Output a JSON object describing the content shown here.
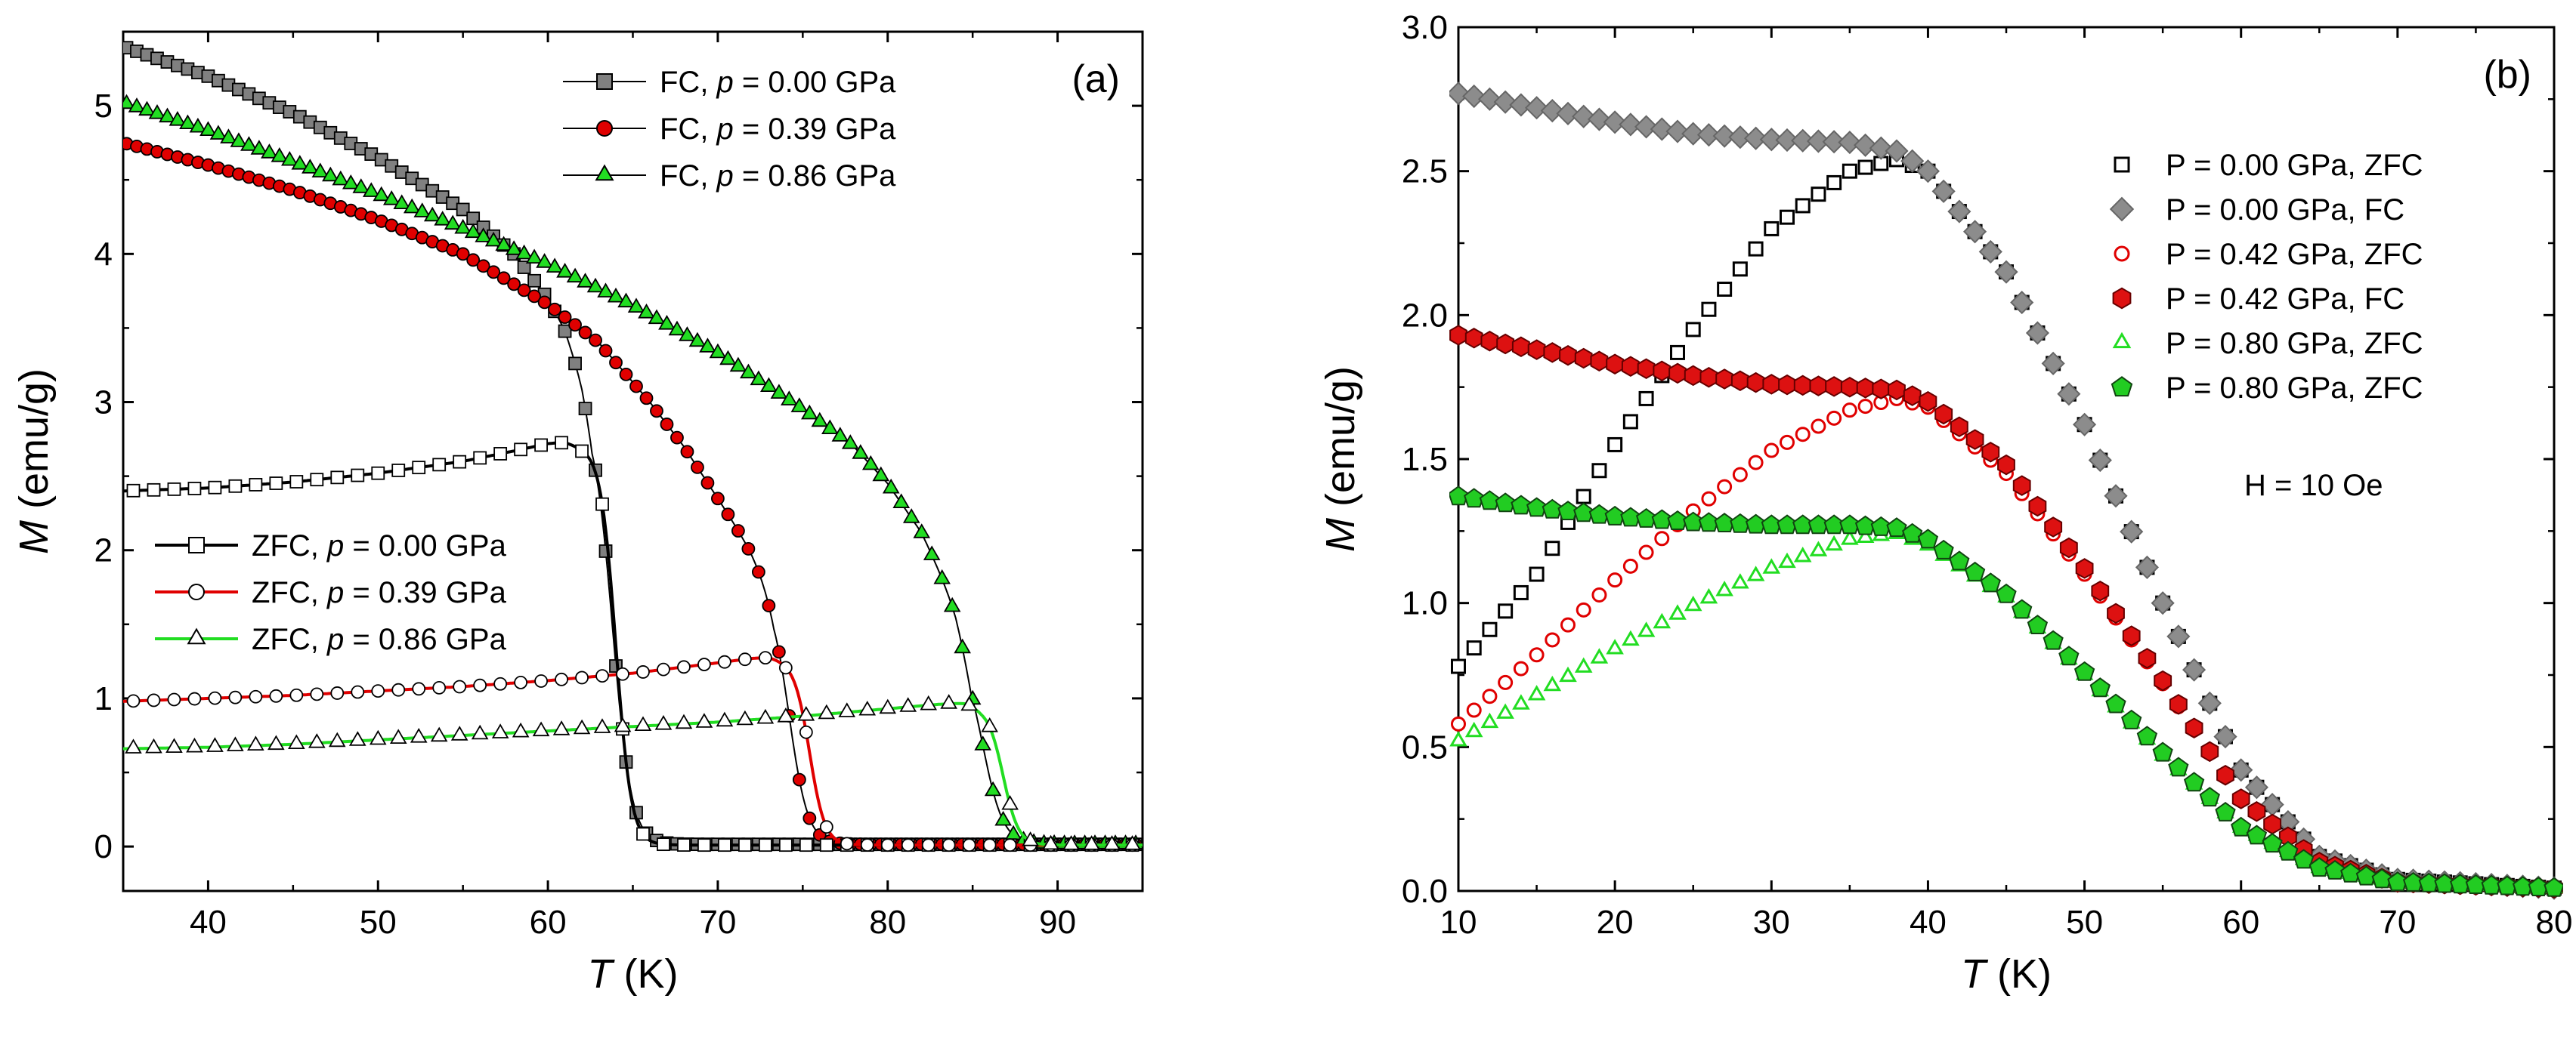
{
  "chart_data": [
    {
      "type": "line",
      "panel": "(a)",
      "xlabel_var": "T",
      "xlabel_unit": " (K)",
      "ylabel_var": "M",
      "ylabel_unit": " (emu/g)",
      "xlim": [
        35,
        95
      ],
      "ylim": [
        -0.3,
        5.5
      ],
      "xticks": [
        40,
        50,
        60,
        70,
        80,
        90
      ],
      "yticks": [
        0,
        1,
        2,
        3,
        4,
        5
      ],
      "series": [
        {
          "id": "fc0",
          "label_pre": "FC, ",
          "label_var": "p",
          "label_post": " = 0.00 GPa",
          "color": "#808080",
          "marker": "square",
          "filled": true,
          "line": "#000000",
          "lw": 2,
          "Tc": 63.8,
          "w": 0.55,
          "base": 0.015,
          "pts": [
            [
              35,
              5.4
            ],
            [
              40,
              5.2
            ],
            [
              45,
              4.95
            ],
            [
              50,
              4.65
            ],
            [
              55,
              4.3
            ],
            [
              58,
              4.0
            ],
            [
              60,
              3.7
            ],
            [
              61,
              3.5
            ],
            [
              62,
              3.2
            ],
            [
              62.6,
              2.95
            ]
          ]
        },
        {
          "id": "fc1",
          "label_pre": "FC, ",
          "label_var": "p",
          "label_post": " = 0.39 GPa",
          "color": "#e00000",
          "marker": "circle",
          "filled": true,
          "line": "#000000",
          "lw": 2,
          "Tc": 74.2,
          "w": 0.55,
          "base": 0.015,
          "pts": [
            [
              35,
              4.75
            ],
            [
              40,
              4.6
            ],
            [
              45,
              4.43
            ],
            [
              50,
              4.23
            ],
            [
              55,
              4.0
            ],
            [
              60,
              3.66
            ],
            [
              63,
              3.4
            ],
            [
              66,
              3.0
            ],
            [
              68,
              2.7
            ],
            [
              70,
              2.35
            ],
            [
              72,
              2.0
            ],
            [
              73.3,
              1.75
            ]
          ]
        },
        {
          "id": "fc2",
          "label_pre": "FC, ",
          "label_var": "p",
          "label_post": " = 0.86 GPa",
          "color": "#22dd22",
          "marker": "triangle",
          "filled": true,
          "line": "#000000",
          "lw": 2,
          "Tc": 85.6,
          "w": 0.6,
          "base": 0.015,
          "pts": [
            [
              35,
              5.02
            ],
            [
              40,
              4.83
            ],
            [
              45,
              4.62
            ],
            [
              50,
              4.4
            ],
            [
              55,
              4.17
            ],
            [
              60,
              3.93
            ],
            [
              65,
              3.65
            ],
            [
              70,
              3.33
            ],
            [
              75,
              2.95
            ],
            [
              78,
              2.7
            ],
            [
              80,
              2.45
            ],
            [
              82,
              2.12
            ],
            [
              84,
              1.65
            ],
            [
              84.9,
              1.35
            ]
          ]
        },
        {
          "id": "zfc0",
          "label_pre": "ZFC, ",
          "label_var": "p",
          "label_post": " = 0.00 GPa",
          "color": "#000000",
          "marker": "square",
          "filled": false,
          "line": "#000000",
          "lw": 4,
          "Tc": 64.0,
          "w": 0.45,
          "base": 0.01,
          "pts": [
            [
              35,
              2.4
            ],
            [
              40,
              2.42
            ],
            [
              45,
              2.46
            ],
            [
              50,
              2.52
            ],
            [
              55,
              2.6
            ],
            [
              58,
              2.67
            ],
            [
              60,
              2.72
            ],
            [
              61,
              2.73
            ],
            [
              62,
              2.7
            ]
          ]
        },
        {
          "id": "zfc1",
          "label_pre": "ZFC, ",
          "label_var": "p",
          "label_post": " = 0.39 GPa",
          "color": "#e00000",
          "marker": "circle",
          "filled": false,
          "line": "#e00000",
          "lw": 4,
          "Tc": 75.4,
          "w": 0.45,
          "base": 0.01,
          "pts": [
            [
              35,
              0.98
            ],
            [
              40,
              1.0
            ],
            [
              45,
              1.02
            ],
            [
              50,
              1.05
            ],
            [
              55,
              1.08
            ],
            [
              60,
              1.12
            ],
            [
              65,
              1.17
            ],
            [
              70,
              1.24
            ],
            [
              72,
              1.27
            ],
            [
              73,
              1.28
            ],
            [
              74,
              1.26
            ]
          ]
        },
        {
          "id": "zfc2",
          "label_pre": "ZFC, ",
          "label_var": "p",
          "label_post": " = 0.86 GPa",
          "color": "#22dd22",
          "marker": "triangle",
          "filled": false,
          "line": "#22dd22",
          "lw": 4,
          "Tc": 86.8,
          "w": 0.45,
          "base": 0.01,
          "pts": [
            [
              35,
              0.66
            ],
            [
              40,
              0.67
            ],
            [
              45,
              0.69
            ],
            [
              50,
              0.72
            ],
            [
              55,
              0.75
            ],
            [
              60,
              0.78
            ],
            [
              65,
              0.81
            ],
            [
              70,
              0.84
            ],
            [
              75,
              0.88
            ],
            [
              80,
              0.93
            ],
            [
              83,
              0.96
            ],
            [
              84.5,
              0.97
            ],
            [
              85.5,
              0.94
            ]
          ]
        }
      ]
    },
    {
      "type": "scatter",
      "panel": "(b)",
      "xlabel_var": "T",
      "xlabel_unit": " (K)",
      "ylabel_var": "M",
      "ylabel_unit": " (emu/g)",
      "xlim": [
        10,
        80
      ],
      "ylim": [
        0.0,
        3.0
      ],
      "xticks": [
        10,
        20,
        30,
        40,
        50,
        60,
        70,
        80
      ],
      "yticks": [
        "0.0",
        "0.5",
        "1.0",
        "1.5",
        "2.0",
        "2.5",
        "3.0"
      ],
      "annotation": "H = 10 Oe",
      "series": [
        {
          "id": "b_zfc0",
          "label": "P = 0.00 GPa, ZFC",
          "color": "#000000",
          "fill": "#ffffff",
          "marker": "square",
          "pts": [
            [
              10,
              0.78
            ],
            [
              15,
              1.1
            ],
            [
              20,
              1.55
            ],
            [
              25,
              1.95
            ],
            [
              30,
              2.3
            ],
            [
              35,
              2.5
            ],
            [
              38,
              2.54
            ],
            [
              40,
              2.5
            ],
            [
              45,
              2.15
            ],
            [
              50,
              1.62
            ],
            [
              55,
              1.0
            ],
            [
              60,
              0.42
            ],
            [
              65,
              0.12
            ],
            [
              70,
              0.04
            ],
            [
              80,
              0.01
            ]
          ]
        },
        {
          "id": "b_fc0",
          "label": "P = 0.00 GPa, FC",
          "color": "#666666",
          "fill": "#8c8c8c",
          "marker": "diamond",
          "pts": [
            [
              10,
              2.77
            ],
            [
              15,
              2.72
            ],
            [
              20,
              2.67
            ],
            [
              25,
              2.63
            ],
            [
              30,
              2.61
            ],
            [
              35,
              2.6
            ],
            [
              38,
              2.57
            ],
            [
              40,
              2.5
            ],
            [
              45,
              2.15
            ],
            [
              50,
              1.62
            ],
            [
              55,
              1.0
            ],
            [
              60,
              0.42
            ],
            [
              65,
              0.12
            ],
            [
              70,
              0.04
            ],
            [
              80,
              0.01
            ]
          ]
        },
        {
          "id": "b_zfc1",
          "label": "P = 0.42 GPa, ZFC",
          "color": "#e00000",
          "fill": "#ffffff",
          "marker": "circle",
          "pts": [
            [
              10,
              0.58
            ],
            [
              15,
              0.82
            ],
            [
              20,
              1.08
            ],
            [
              25,
              1.32
            ],
            [
              30,
              1.53
            ],
            [
              35,
              1.67
            ],
            [
              38,
              1.71
            ],
            [
              40,
              1.68
            ],
            [
              45,
              1.45
            ],
            [
              50,
              1.1
            ],
            [
              55,
              0.72
            ],
            [
              60,
              0.32
            ],
            [
              65,
              0.1
            ],
            [
              70,
              0.03
            ],
            [
              80,
              0.01
            ]
          ]
        },
        {
          "id": "b_fc1",
          "label": "P = 0.42 GPa, FC",
          "color": "#660000",
          "fill": "#dd1111",
          "marker": "hexagon",
          "pts": [
            [
              10,
              1.93
            ],
            [
              15,
              1.88
            ],
            [
              20,
              1.83
            ],
            [
              25,
              1.79
            ],
            [
              30,
              1.76
            ],
            [
              35,
              1.75
            ],
            [
              38,
              1.74
            ],
            [
              40,
              1.7
            ],
            [
              45,
              1.48
            ],
            [
              50,
              1.12
            ],
            [
              55,
              0.73
            ],
            [
              60,
              0.32
            ],
            [
              65,
              0.1
            ],
            [
              70,
              0.03
            ],
            [
              80,
              0.01
            ]
          ]
        },
        {
          "id": "b_zfc2",
          "label": "P = 0.80 GPa, ZFC",
          "color": "#22dd22",
          "fill": "#ffffff",
          "marker": "triangle",
          "pts": [
            [
              10,
              0.52
            ],
            [
              15,
              0.68
            ],
            [
              20,
              0.84
            ],
            [
              25,
              0.99
            ],
            [
              30,
              1.12
            ],
            [
              35,
              1.22
            ],
            [
              38,
              1.24
            ],
            [
              40,
              1.2
            ],
            [
              45,
              1.02
            ],
            [
              50,
              0.75
            ],
            [
              55,
              0.47
            ],
            [
              60,
              0.22
            ],
            [
              65,
              0.08
            ],
            [
              70,
              0.03
            ],
            [
              80,
              0.01
            ]
          ]
        },
        {
          "id": "b_fc2",
          "label": "P = 0.80 GPa, ZFC",
          "color": "#114411",
          "fill": "#22cc22",
          "marker": "pentagon",
          "pts": [
            [
              10,
              1.37
            ],
            [
              15,
              1.33
            ],
            [
              20,
              1.3
            ],
            [
              25,
              1.28
            ],
            [
              30,
              1.27
            ],
            [
              35,
              1.27
            ],
            [
              38,
              1.26
            ],
            [
              40,
              1.22
            ],
            [
              45,
              1.03
            ],
            [
              50,
              0.76
            ],
            [
              55,
              0.48
            ],
            [
              60,
              0.22
            ],
            [
              65,
              0.08
            ],
            [
              70,
              0.03
            ],
            [
              80,
              0.01
            ]
          ]
        }
      ]
    }
  ]
}
